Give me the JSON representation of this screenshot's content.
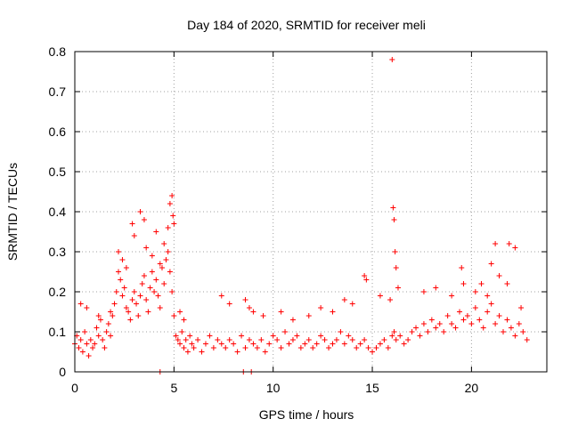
{
  "chart_data": {
    "type": "scatter",
    "title": "Day 184 of 2020, SRMTID for receiver meli",
    "xlabel": "GPS time / hours",
    "ylabel": "SRMTID / TECUs",
    "xlim": [
      0,
      23.8
    ],
    "ylim": [
      0,
      0.8
    ],
    "x_ticks": [
      "0",
      "5",
      "10",
      "15",
      "20"
    ],
    "y_ticks": [
      "0",
      "0.1",
      "0.2",
      "0.3",
      "0.4",
      "0.5",
      "0.6",
      "0.7",
      "0.8"
    ],
    "grid": true,
    "marker": "plus",
    "color": "#ff0000",
    "series": [
      {
        "name": "SRMTID",
        "x": [
          0.0,
          0.1,
          0.2,
          0.3,
          0.4,
          0.5,
          0.6,
          0.7,
          0.8,
          0.9,
          1.0,
          1.1,
          1.2,
          1.3,
          1.4,
          1.5,
          1.6,
          1.7,
          1.8,
          1.9,
          2.0,
          2.1,
          2.2,
          2.3,
          2.4,
          2.5,
          2.6,
          2.7,
          2.8,
          2.9,
          3.0,
          3.1,
          3.2,
          3.3,
          3.4,
          3.5,
          3.6,
          3.7,
          3.8,
          3.9,
          4.0,
          4.1,
          4.2,
          4.3,
          4.4,
          4.5,
          4.6,
          4.7,
          4.8,
          4.9,
          5.0,
          5.1,
          5.2,
          5.3,
          5.4,
          5.5,
          5.6,
          5.7,
          5.8,
          5.9,
          6.0,
          6.2,
          6.4,
          6.6,
          6.8,
          7.0,
          7.2,
          7.4,
          7.6,
          7.8,
          8.0,
          8.2,
          8.4,
          8.6,
          8.8,
          9.0,
          9.2,
          9.4,
          9.6,
          9.8,
          10.0,
          10.2,
          10.4,
          10.6,
          10.8,
          11.0,
          11.2,
          11.4,
          11.6,
          11.8,
          12.0,
          12.2,
          12.4,
          12.6,
          12.8,
          13.0,
          13.2,
          13.4,
          13.6,
          13.8,
          14.0,
          14.2,
          14.4,
          14.6,
          14.8,
          15.0,
          15.2,
          15.4,
          15.6,
          15.8,
          16.0,
          16.1,
          16.2,
          16.4,
          16.6,
          16.8,
          17.0,
          17.2,
          17.4,
          17.6,
          17.8,
          18.0,
          18.2,
          18.4,
          18.6,
          18.8,
          19.0,
          19.2,
          19.4,
          19.6,
          19.8,
          20.0,
          20.2,
          20.4,
          20.6,
          20.8,
          21.0,
          21.2,
          21.4,
          21.6,
          21.8,
          22.0,
          22.2,
          22.4,
          22.6,
          22.8,
          0.3,
          0.6,
          1.2,
          1.8,
          2.2,
          2.4,
          2.6,
          2.9,
          3.0,
          3.3,
          3.5,
          3.6,
          3.9,
          4.1,
          4.3,
          4.5,
          4.7,
          4.8,
          4.9,
          4.95,
          5.0,
          5.3,
          5.5,
          7.4,
          7.8,
          8.6,
          8.8,
          9.0,
          9.5,
          10.4,
          11.0,
          11.8,
          12.4,
          13.0,
          13.6,
          14.0,
          14.6,
          14.7,
          15.4,
          15.9,
          16.0,
          16.05,
          16.1,
          16.15,
          16.2,
          16.3,
          17.6,
          18.2,
          19.0,
          19.5,
          19.6,
          20.2,
          20.5,
          20.8,
          21.0,
          21.2,
          21.4,
          21.8,
          21.9,
          22.2,
          22.5,
          4.3,
          8.5,
          8.9
        ],
        "y": [
          0.07,
          0.09,
          0.06,
          0.08,
          0.05,
          0.1,
          0.07,
          0.04,
          0.08,
          0.06,
          0.07,
          0.11,
          0.09,
          0.13,
          0.08,
          0.06,
          0.1,
          0.12,
          0.09,
          0.14,
          0.17,
          0.2,
          0.25,
          0.23,
          0.19,
          0.21,
          0.16,
          0.15,
          0.13,
          0.18,
          0.2,
          0.17,
          0.14,
          0.19,
          0.22,
          0.24,
          0.18,
          0.15,
          0.21,
          0.25,
          0.2,
          0.23,
          0.19,
          0.16,
          0.26,
          0.22,
          0.28,
          0.3,
          0.25,
          0.2,
          0.14,
          0.09,
          0.08,
          0.07,
          0.1,
          0.06,
          0.08,
          0.05,
          0.09,
          0.07,
          0.06,
          0.08,
          0.05,
          0.07,
          0.09,
          0.06,
          0.08,
          0.07,
          0.06,
          0.08,
          0.07,
          0.05,
          0.09,
          0.06,
          0.08,
          0.07,
          0.06,
          0.08,
          0.05,
          0.07,
          0.09,
          0.08,
          0.06,
          0.1,
          0.07,
          0.08,
          0.09,
          0.06,
          0.07,
          0.08,
          0.06,
          0.07,
          0.09,
          0.08,
          0.06,
          0.07,
          0.08,
          0.1,
          0.07,
          0.09,
          0.08,
          0.06,
          0.07,
          0.08,
          0.06,
          0.05,
          0.06,
          0.07,
          0.08,
          0.06,
          0.09,
          0.1,
          0.08,
          0.09,
          0.07,
          0.08,
          0.1,
          0.11,
          0.09,
          0.12,
          0.1,
          0.13,
          0.11,
          0.12,
          0.1,
          0.14,
          0.12,
          0.11,
          0.15,
          0.13,
          0.14,
          0.12,
          0.16,
          0.13,
          0.11,
          0.15,
          0.17,
          0.12,
          0.14,
          0.1,
          0.13,
          0.11,
          0.09,
          0.12,
          0.1,
          0.08,
          0.17,
          0.16,
          0.14,
          0.15,
          0.3,
          0.28,
          0.26,
          0.37,
          0.34,
          0.4,
          0.38,
          0.31,
          0.29,
          0.35,
          0.27,
          0.32,
          0.36,
          0.42,
          0.44,
          0.39,
          0.37,
          0.15,
          0.13,
          0.19,
          0.17,
          0.18,
          0.16,
          0.15,
          0.14,
          0.15,
          0.13,
          0.14,
          0.16,
          0.15,
          0.18,
          0.17,
          0.24,
          0.23,
          0.19,
          0.18,
          0.78,
          0.41,
          0.38,
          0.3,
          0.26,
          0.21,
          0.2,
          0.21,
          0.19,
          0.26,
          0.22,
          0.2,
          0.22,
          0.19,
          0.27,
          0.32,
          0.24,
          0.22,
          0.32,
          0.31,
          0.16,
          0.0,
          0.0,
          0.0
        ]
      }
    ]
  }
}
